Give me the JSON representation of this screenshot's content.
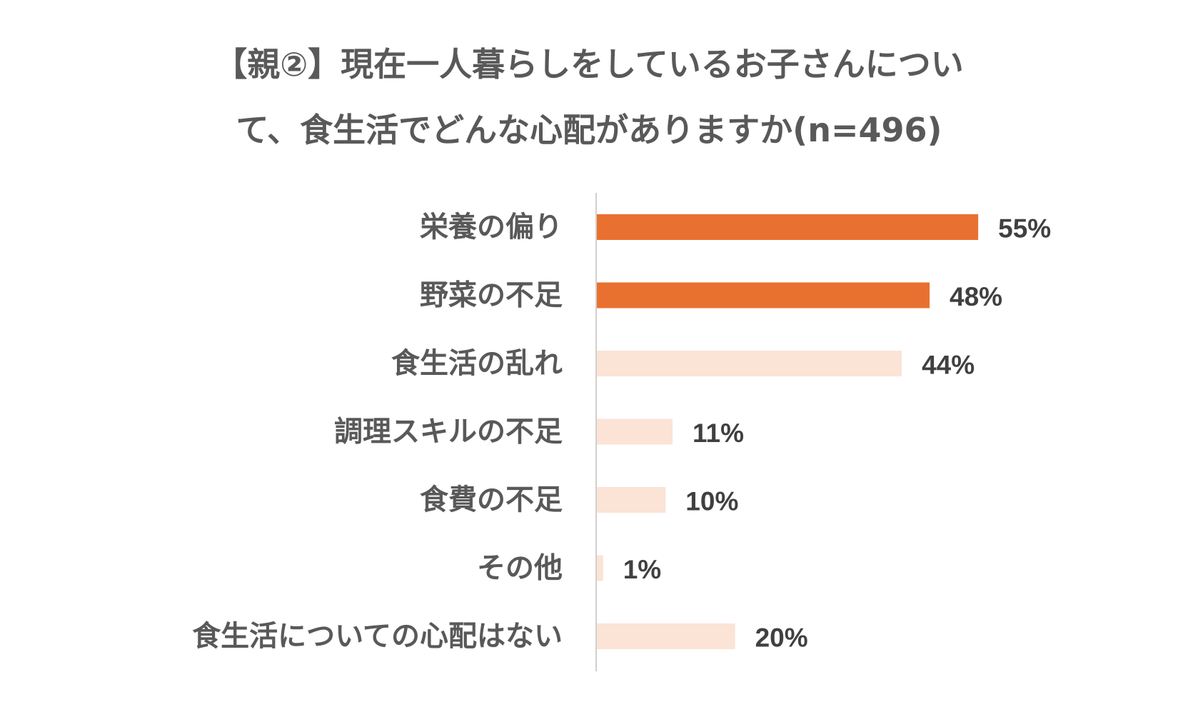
{
  "chart_data": {
    "type": "bar",
    "orientation": "horizontal",
    "title_lines": [
      "【親②】現在一人暮らしをしているお子さんについ",
      "て、食生活でどんな心配がありますか(n=496)"
    ],
    "categories": [
      "栄養の偏り",
      "野菜の不足",
      "食生活の乱れ",
      "調理スキルの不足",
      "食費の不足",
      "その他",
      "食生活についての心配はない"
    ],
    "values": [
      55,
      48,
      44,
      11,
      10,
      1,
      20
    ],
    "data_labels": [
      "55%",
      "48%",
      "44%",
      "11%",
      "10%",
      "1%",
      "20%"
    ],
    "unit": "%",
    "xlim": [
      0,
      100
    ],
    "grid": false,
    "legend": "none",
    "bar_colors": [
      "#E8712F",
      "#E8712F",
      "#FBE3D6",
      "#FBE3D6",
      "#FBE3D6",
      "#FBE3D6",
      "#FBE3D6"
    ],
    "axis_color": "#D0D0D0",
    "text_color": "#595959",
    "value_label_color": "#404040"
  }
}
